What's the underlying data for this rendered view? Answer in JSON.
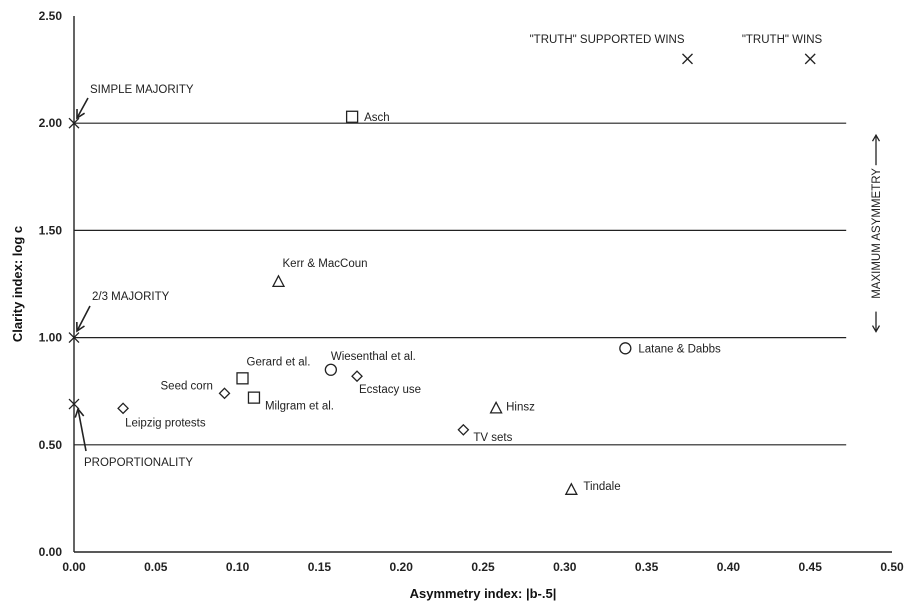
{
  "chart_data": {
    "type": "scatter",
    "xlabel": "Asymmetry index:  |b-.5|",
    "ylabel": "Clarity index:  log c",
    "xlim": [
      0,
      0.5
    ],
    "ylim": [
      0,
      2.5
    ],
    "x_ticks": [
      "0.00",
      "0.05",
      "0.10",
      "0.15",
      "0.20",
      "0.25",
      "0.30",
      "0.35",
      "0.40",
      "0.45",
      "0.50"
    ],
    "y_ticks": [
      "0.00",
      "0.50",
      "1.00",
      "1.50",
      "2.00",
      "2.50"
    ],
    "x_tick_values": [
      0,
      0.05,
      0.1,
      0.15,
      0.2,
      0.25,
      0.3,
      0.35,
      0.4,
      0.45,
      0.5
    ],
    "y_tick_values": [
      0,
      0.5,
      1.0,
      1.5,
      2.0,
      2.5
    ],
    "reference_lines_y": [
      0.5,
      1.0,
      1.5,
      2.0
    ],
    "points": [
      {
        "label": "Asch",
        "x": 0.17,
        "y": 2.03,
        "marker": "square"
      },
      {
        "label": "Kerr & MacCoun",
        "x": 0.125,
        "y": 1.26,
        "marker": "triangle"
      },
      {
        "label": "Gerard et al.",
        "x": 0.103,
        "y": 0.81,
        "marker": "square"
      },
      {
        "label": "Wiesenthal et al.",
        "x": 0.157,
        "y": 0.85,
        "marker": "circle"
      },
      {
        "label": "Seed corn",
        "x": 0.092,
        "y": 0.74,
        "marker": "diamond"
      },
      {
        "label": "Ecstacy use",
        "x": 0.173,
        "y": 0.82,
        "marker": "diamond"
      },
      {
        "label": "Milgram et al.",
        "x": 0.11,
        "y": 0.72,
        "marker": "square"
      },
      {
        "label": "Leipzig protests",
        "x": 0.03,
        "y": 0.67,
        "marker": "diamond"
      },
      {
        "label": "Latane & Dabbs",
        "x": 0.337,
        "y": 0.95,
        "marker": "circle"
      },
      {
        "label": "Hinsz",
        "x": 0.258,
        "y": 0.67,
        "marker": "triangle"
      },
      {
        "label": "TV sets",
        "x": 0.238,
        "y": 0.57,
        "marker": "diamond"
      },
      {
        "label": "Tindale",
        "x": 0.304,
        "y": 0.29,
        "marker": "triangle"
      },
      {
        "label": "\"TRUTH\" SUPPORTED WINS",
        "x": 0.375,
        "y": 2.3,
        "marker": "x"
      },
      {
        "label": "\"TRUTH\" WINS",
        "x": 0.45,
        "y": 2.3,
        "marker": "x"
      }
    ],
    "annotations": [
      {
        "text": "SIMPLE MAJORITY",
        "x": 0,
        "y": 2.0,
        "marker": "x"
      },
      {
        "text": "2/3 MAJORITY",
        "x": 0,
        "y": 1.0,
        "marker": "x"
      },
      {
        "text": "PROPORTIONALITY",
        "x": 0,
        "y": 0.69,
        "marker": "x"
      }
    ],
    "vertical_annotation": {
      "text": "MAXIMUM ASYMMETRY",
      "x": 0.49,
      "y_range": [
        1.0,
        2.0
      ]
    },
    "grid": false
  }
}
